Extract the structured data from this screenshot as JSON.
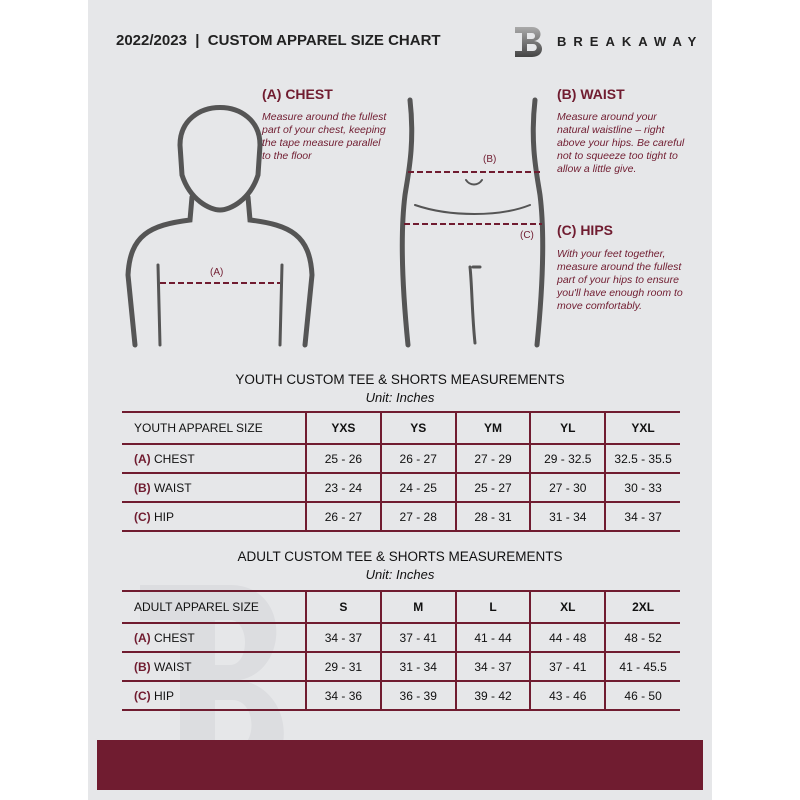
{
  "header": {
    "title": "2022/2023  |  CUSTOM APPAREL SIZE CHART",
    "brand": "BREAKAWAY",
    "logo_letter": "B"
  },
  "measures": {
    "chest": {
      "title": "(A) CHEST",
      "desc": "Measure around the fullest part of your chest, keeping the tape measure parallel to the floor",
      "marker": "(A)"
    },
    "waist": {
      "title": "(B) WAIST",
      "desc": "Measure around your natural waistline – right above your hips. Be careful not to squeeze too tight to allow a little give.",
      "marker": "(B)"
    },
    "hips": {
      "title": "(C) HIPS",
      "desc": "With your feet together, measure around the fullest part of your hips to ensure you'll have enough room to move comfortably.",
      "marker": "(C)"
    }
  },
  "youth": {
    "title": "YOUTH CUSTOM TEE & SHORTS MEASUREMENTS",
    "unit": "Unit: Inches",
    "size_label": "YOUTH APPAREL SIZE",
    "sizes": [
      "YXS",
      "YS",
      "YM",
      "YL",
      "YXL"
    ],
    "rows": [
      {
        "code": "(A)",
        "name": "CHEST",
        "values": [
          "25 - 26",
          "26 - 27",
          "27 - 29",
          "29 - 32.5",
          "32.5 - 35.5"
        ]
      },
      {
        "code": "(B)",
        "name": "WAIST",
        "values": [
          "23 - 24",
          "24 - 25",
          "25 - 27",
          "27 - 30",
          "30 - 33"
        ]
      },
      {
        "code": "(C)",
        "name": "HIP",
        "values": [
          "26 - 27",
          "27 - 28",
          "28 - 31",
          "31 - 34",
          "34 - 37"
        ]
      }
    ]
  },
  "adult": {
    "title": "ADULT CUSTOM TEE & SHORTS MEASUREMENTS",
    "unit": "Unit: Inches",
    "size_label": "ADULT APPAREL SIZE",
    "sizes": [
      "S",
      "M",
      "L",
      "XL",
      "2XL"
    ],
    "rows": [
      {
        "code": "(A)",
        "name": "CHEST",
        "values": [
          "34 - 37",
          "37 - 41",
          "41 - 44",
          "44 - 48",
          "48 - 52"
        ]
      },
      {
        "code": "(B)",
        "name": "WAIST",
        "values": [
          "29 - 31",
          "31 - 34",
          "34 - 37",
          "37 - 41",
          "41 - 45.5"
        ]
      },
      {
        "code": "(C)",
        "name": "HIP",
        "values": [
          "34 - 36",
          "36 - 39",
          "39 - 42",
          "43 - 46",
          "46 - 50"
        ]
      }
    ]
  },
  "colors": {
    "accent": "#701c30",
    "panel": "#e6e7e9"
  }
}
